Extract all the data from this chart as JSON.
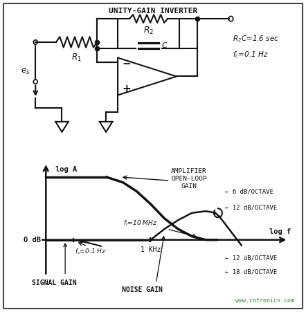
{
  "title": "UNITY-GAIN INVERTER",
  "text_color": "#111111",
  "rc_eq": "R2C=1.6 sec",
  "fc_eq": "fc=0.1 Hz",
  "watermark": "www.cntronics.com"
}
